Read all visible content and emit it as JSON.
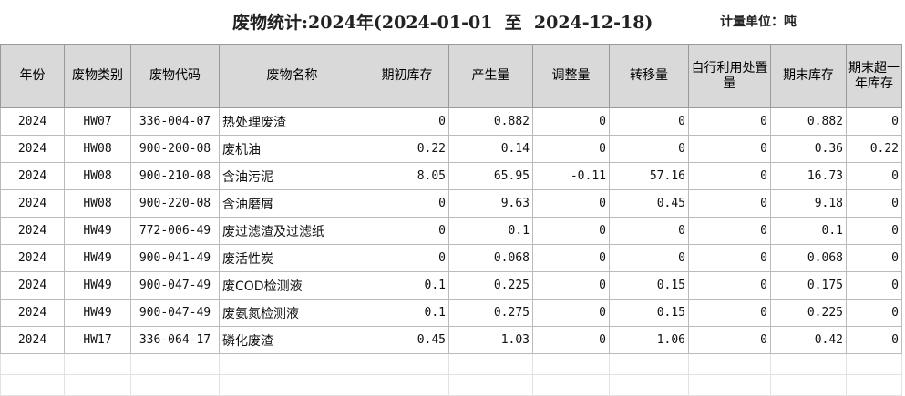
{
  "header": {
    "title": "废物统计:2024年(2024-01-01  至  2024-12-18)",
    "unit": "计量单位：吨"
  },
  "table": {
    "columns": [
      "年份",
      "废物类别",
      "废物代码",
      "废物名称",
      "期初库存",
      "产生量",
      "调整量",
      "转移量",
      "自行利用处置量",
      "期末库存",
      "期末超一年库存"
    ],
    "rows": [
      [
        "2024",
        "HW07",
        "336-004-07",
        "热处理废渣",
        "0",
        "0.882",
        "0",
        "0",
        "0",
        "0.882",
        "0"
      ],
      [
        "2024",
        "HW08",
        "900-200-08",
        "废机油",
        "0.22",
        "0.14",
        "0",
        "0",
        "0",
        "0.36",
        "0.22"
      ],
      [
        "2024",
        "HW08",
        "900-210-08",
        "含油污泥",
        "8.05",
        "65.95",
        "-0.11",
        "57.16",
        "0",
        "16.73",
        "0"
      ],
      [
        "2024",
        "HW08",
        "900-220-08",
        "含油磨屑",
        "0",
        "9.63",
        "0",
        "0.45",
        "0",
        "9.18",
        "0"
      ],
      [
        "2024",
        "HW49",
        "772-006-49",
        "废过滤渣及过滤纸",
        "0",
        "0.1",
        "0",
        "0",
        "0",
        "0.1",
        "0"
      ],
      [
        "2024",
        "HW49",
        "900-041-49",
        "废活性炭",
        "0",
        "0.068",
        "0",
        "0",
        "0",
        "0.068",
        "0"
      ],
      [
        "2024",
        "HW49",
        "900-047-49",
        "废COD检测液",
        "0.1",
        "0.225",
        "0",
        "0.15",
        "0",
        "0.175",
        "0"
      ],
      [
        "2024",
        "HW49",
        "900-047-49",
        "废氨氮检测液",
        "0.1",
        "0.275",
        "0",
        "0.15",
        "0",
        "0.225",
        "0"
      ],
      [
        "2024",
        "HW17",
        "336-064-17",
        "磷化废渣",
        "0.45",
        "1.03",
        "0",
        "1.06",
        "0",
        "0.42",
        "0"
      ]
    ]
  }
}
